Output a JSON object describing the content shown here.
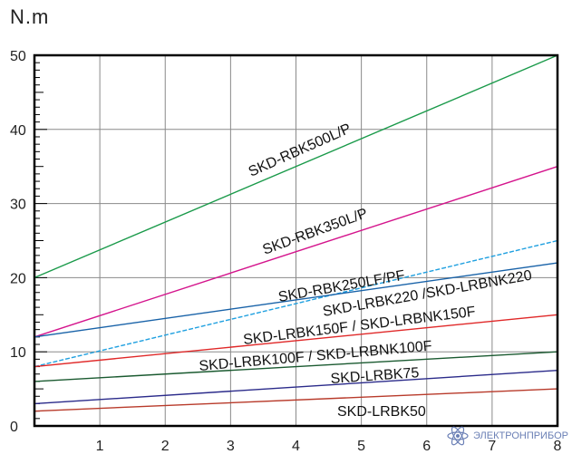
{
  "chart_data": {
    "type": "line",
    "ylabel": "N.m",
    "xlim": [
      0,
      8
    ],
    "ylim": [
      0,
      50
    ],
    "x_ticks": [
      1,
      2,
      3,
      4,
      5,
      6,
      7,
      8
    ],
    "y_ticks": [
      0,
      10,
      20,
      30,
      40,
      50
    ],
    "grid": true,
    "series": [
      {
        "name": "SKD-RBK500L/P",
        "x": [
          0,
          8
        ],
        "values": [
          20,
          50
        ],
        "color": "#1a9a4a"
      },
      {
        "name": "SKD-RBK350L/P",
        "x": [
          0,
          8
        ],
        "values": [
          12,
          35
        ],
        "color": "#d4148c"
      },
      {
        "name": "SKD-RBK250LF/PF",
        "x": [
          0,
          8
        ],
        "values": [
          8,
          25
        ],
        "color": "#1fa0e0",
        "dashed": true
      },
      {
        "name": "SKD-LRBK220 /SKD-LRBNK220",
        "x": [
          0,
          8
        ],
        "values": [
          12,
          22
        ],
        "color": "#1862a8"
      },
      {
        "name": "SKD-LRBK150F / SKD-LRBNK150F",
        "x": [
          0,
          8
        ],
        "values": [
          8,
          15
        ],
        "color": "#e02828"
      },
      {
        "name": "SKD-LRBK100F / SKD-LRBNK100F",
        "x": [
          0,
          8
        ],
        "values": [
          6,
          10
        ],
        "color": "#1a5a30"
      },
      {
        "name": "SKD-LRBK75",
        "x": [
          0,
          8
        ],
        "values": [
          3,
          7.5
        ],
        "color": "#2a2a8a"
      },
      {
        "name": "SKD-LRBK50",
        "x": [
          0,
          8
        ],
        "values": [
          2,
          5
        ],
        "color": "#b83a2a"
      }
    ]
  },
  "watermark": {
    "text": "ЭЛЕКТРОНПРИБОР",
    "icon": "atom-icon"
  }
}
